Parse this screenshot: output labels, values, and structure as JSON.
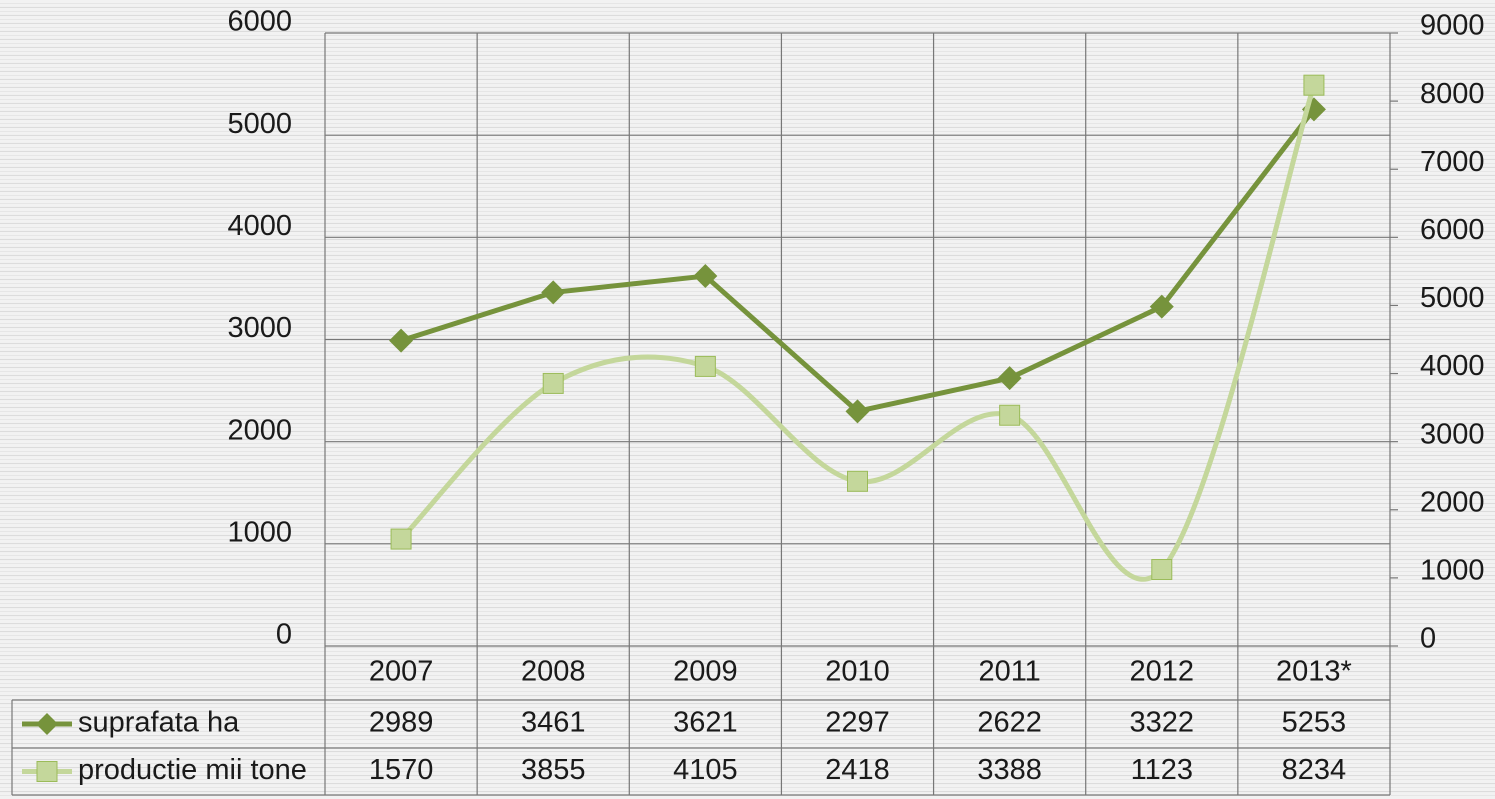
{
  "chart_data": {
    "type": "line",
    "categories": [
      "2007",
      "2008",
      "2009",
      "2010",
      "2011",
      "2012",
      "2013*"
    ],
    "series": [
      {
        "name": "suprafata ha",
        "color": "#76933c",
        "marker": "diamond",
        "smooth": false,
        "values": [
          2989,
          3461,
          3621,
          2297,
          2622,
          3322,
          5253
        ]
      },
      {
        "name": "productie mii tone",
        "color": "#c4d79b",
        "marker": "square",
        "smooth": true,
        "axis": "y2",
        "values": [
          1570,
          3855,
          4105,
          2418,
          3388,
          1123,
          8234
        ]
      }
    ],
    "ylim": [
      0,
      6000
    ],
    "yticks": [
      0,
      1000,
      2000,
      3000,
      4000,
      5000,
      6000
    ],
    "y2lim": [
      0,
      9000
    ],
    "y2ticks": [
      0,
      1000,
      2000,
      3000,
      4000,
      5000,
      6000,
      7000,
      8000,
      9000
    ],
    "grid": true,
    "data_table": true
  }
}
